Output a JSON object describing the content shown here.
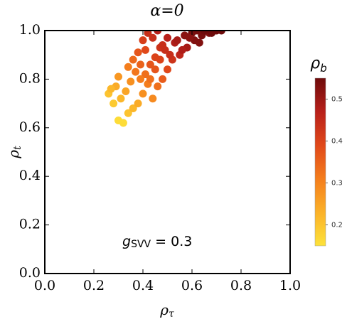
{
  "chart_data": {
    "type": "scatter",
    "title": "α=0",
    "xlabel": "ρ",
    "xlabel_sub": "τ",
    "ylabel": "ρ",
    "ylabel_sub": "t",
    "colorbar_label": "ρ",
    "colorbar_label_sub": "b",
    "annotation": {
      "text": "g",
      "sub": "SVV",
      "rest": " = 0.3"
    },
    "xlim": [
      0,
      1
    ],
    "ylim": [
      0,
      1
    ],
    "xticks": [
      {
        "value": 0,
        "label": "0.0"
      },
      0.2,
      0.4,
      0.6,
      0.8,
      {
        "value": 1,
        "label": "1.0"
      }
    ],
    "yticks": [
      {
        "value": 0,
        "label": "0.0"
      },
      0.2,
      0.4,
      0.6,
      0.8,
      {
        "value": 1,
        "label": "1.0"
      }
    ],
    "clim": [
      0.15,
      0.55
    ],
    "cticks": [
      0.2,
      0.3,
      0.4,
      0.5
    ],
    "colormap": [
      "#fde23a",
      "#fbb128",
      "#f47d1c",
      "#e0481a",
      "#b8201a",
      "#6e0b0b"
    ],
    "series": [
      {
        "x": [
          0.3,
          0.32,
          0.28,
          0.26,
          0.34,
          0.31,
          0.36,
          0.29,
          0.33,
          0.38,
          0.35,
          0.4,
          0.37,
          0.42,
          0.3,
          0.27,
          0.44,
          0.39,
          0.41,
          0.46,
          0.36,
          0.43,
          0.48,
          0.38,
          0.45,
          0.5,
          0.34,
          0.47,
          0.52,
          0.4,
          0.49,
          0.55,
          0.42,
          0.53,
          0.58,
          0.44,
          0.57,
          0.61,
          0.46,
          0.6,
          0.64,
          0.48,
          0.62,
          0.67,
          0.5,
          0.66,
          0.7,
          0.41,
          0.56,
          0.72,
          0.45,
          0.54,
          0.63,
          0.59,
          0.68,
          0.51,
          0.43,
          0.47,
          0.65,
          0.39
        ],
        "y": [
          0.63,
          0.62,
          0.7,
          0.74,
          0.66,
          0.72,
          0.68,
          0.77,
          0.75,
          0.7,
          0.79,
          0.74,
          0.83,
          0.78,
          0.81,
          0.76,
          0.72,
          0.86,
          0.82,
          0.77,
          0.88,
          0.86,
          0.8,
          0.91,
          0.89,
          0.84,
          0.85,
          0.93,
          0.88,
          0.96,
          0.92,
          0.9,
          0.99,
          0.95,
          0.93,
          0.97,
          0.98,
          0.96,
          1.0,
          0.99,
          0.98,
          0.94,
          1.0,
          0.99,
          0.97,
          1.0,
          1.0,
          0.92,
          0.92,
          1.0,
          0.84,
          0.96,
          0.95,
          0.97,
          0.99,
          0.9,
          0.8,
          0.88,
          1.0,
          0.8
        ],
        "color_values": [
          0.16,
          0.16,
          0.19,
          0.2,
          0.2,
          0.22,
          0.22,
          0.24,
          0.25,
          0.24,
          0.28,
          0.28,
          0.32,
          0.31,
          0.27,
          0.22,
          0.29,
          0.35,
          0.33,
          0.33,
          0.34,
          0.37,
          0.36,
          0.37,
          0.4,
          0.39,
          0.31,
          0.43,
          0.43,
          0.41,
          0.44,
          0.46,
          0.44,
          0.48,
          0.49,
          0.44,
          0.52,
          0.53,
          0.47,
          0.54,
          0.54,
          0.44,
          0.54,
          0.53,
          0.47,
          0.54,
          0.55,
          0.39,
          0.48,
          0.55,
          0.37,
          0.49,
          0.53,
          0.52,
          0.55,
          0.44,
          0.33,
          0.4,
          0.55,
          0.31
        ]
      }
    ]
  }
}
